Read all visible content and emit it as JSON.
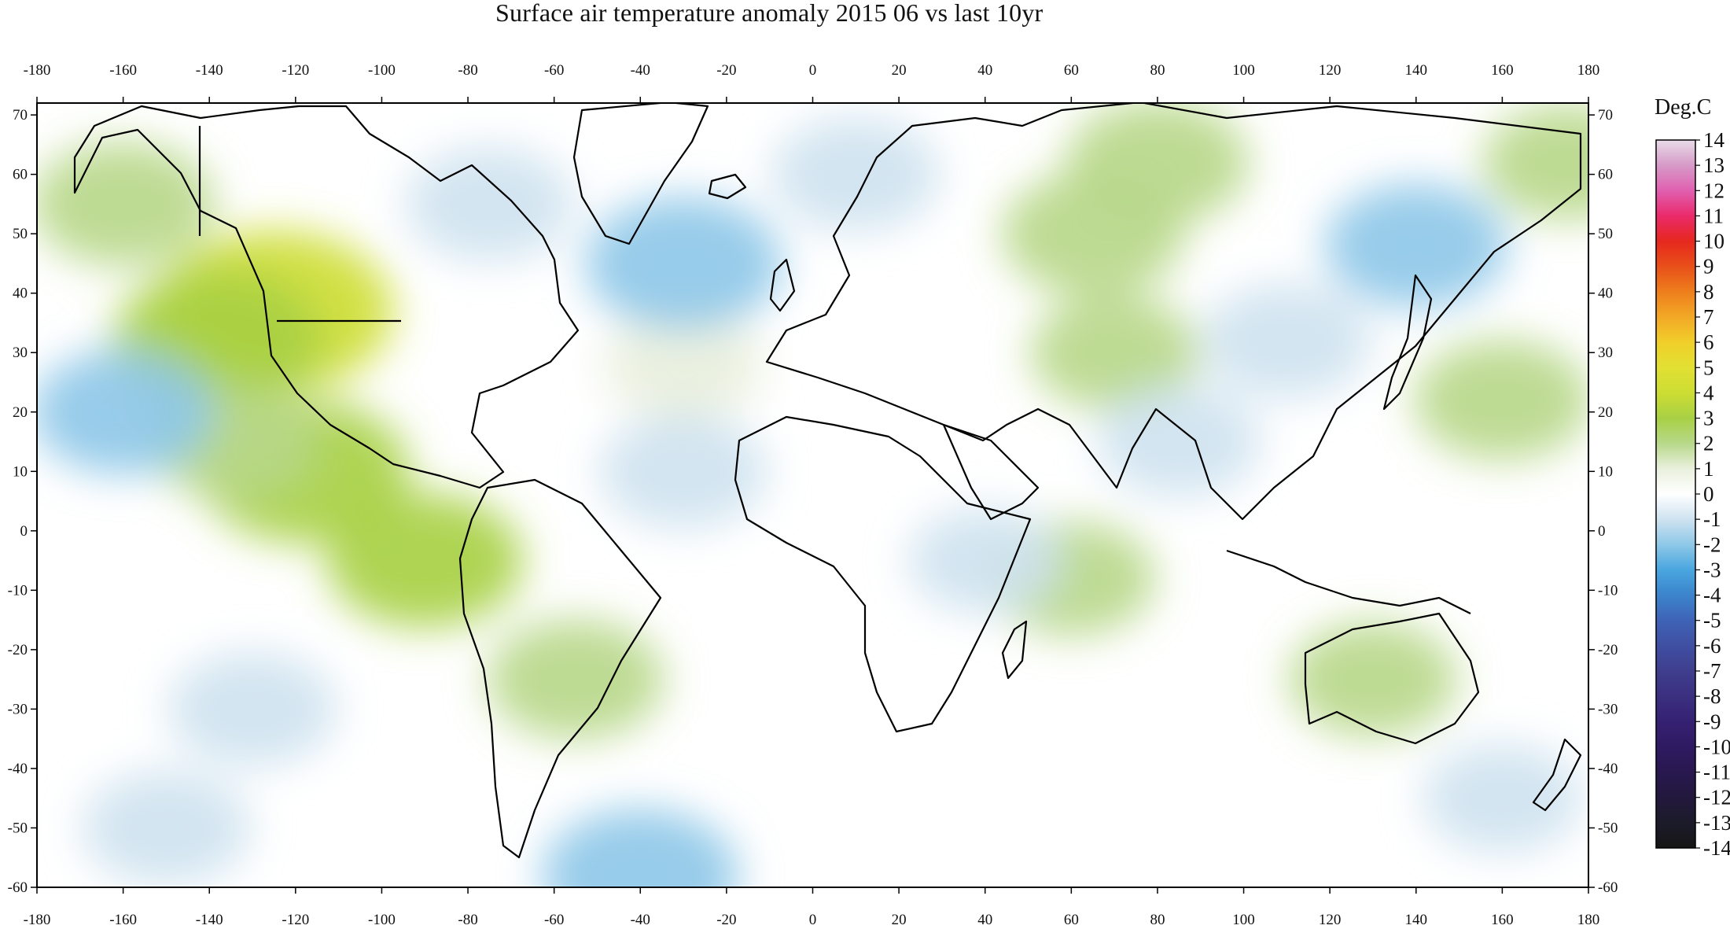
{
  "title": "Surface air temperature anomaly 2015 06 vs last 10yr",
  "legend": {
    "title": "Deg.C",
    "levels": [
      14,
      13,
      12,
      11,
      10,
      9,
      8,
      7,
      6,
      5,
      4,
      3,
      2,
      1,
      0,
      -1,
      -2,
      -3,
      -4,
      -5,
      -6,
      -7,
      -8,
      -9,
      -10,
      -11,
      -12,
      -13,
      -14
    ],
    "colors": [
      "#e8dbe8",
      "#d69ac8",
      "#e060b0",
      "#ea2a6a",
      "#e6281e",
      "#e8501a",
      "#ee7e1c",
      "#f2a826",
      "#f1cf2a",
      "#e2e033",
      "#cddd33",
      "#a8d044",
      "#b8d88a",
      "#e9f0dd",
      "#ffffff",
      "#cfe3f0",
      "#8ec8e8",
      "#4aa6df",
      "#3b84cc",
      "#3f63b6",
      "#3f4fa2",
      "#3f3e8d",
      "#3b2f80",
      "#352172",
      "#2e1a61",
      "#28184f",
      "#23183d",
      "#1c1b2a",
      "#151515"
    ]
  },
  "axes": {
    "lon_ticks": [
      -180,
      -160,
      -140,
      -120,
      -100,
      -80,
      -60,
      -40,
      -20,
      0,
      20,
      40,
      60,
      80,
      100,
      120,
      140,
      160,
      180
    ],
    "lat_ticks": [
      70,
      60,
      50,
      40,
      30,
      20,
      10,
      0,
      -10,
      -20,
      -30,
      -40,
      -50,
      -60
    ],
    "lon_range": [
      -180,
      180
    ],
    "lat_range": [
      -60,
      72
    ]
  },
  "chart_data": {
    "type": "heatmap",
    "title": "Surface air temperature anomaly 2015 06 vs last 10yr",
    "colorbar_label": "Deg.C",
    "value_range": [
      -14,
      14
    ],
    "xlim": [
      -180,
      180
    ],
    "ylim": [
      -60,
      72
    ],
    "anomaly_centers": [
      {
        "lon": -125,
        "lat": 37,
        "value": 4
      },
      {
        "lon": -138,
        "lat": 32,
        "value": 3
      },
      {
        "lon": -118,
        "lat": 10,
        "value": 3
      },
      {
        "lon": -160,
        "lat": 55,
        "value": 2
      },
      {
        "lon": -135,
        "lat": 15,
        "value": 1.5
      },
      {
        "lon": -90,
        "lat": -5,
        "value": 2.5
      },
      {
        "lon": -55,
        "lat": -25,
        "value": 1.8
      },
      {
        "lon": -30,
        "lat": 28,
        "value": 1.2
      },
      {
        "lon": 65,
        "lat": 50,
        "value": 2
      },
      {
        "lon": 80,
        "lat": 62,
        "value": 2
      },
      {
        "lon": 70,
        "lat": 30,
        "value": 1.5
      },
      {
        "lon": 130,
        "lat": -25,
        "value": 1.5
      },
      {
        "lon": 160,
        "lat": 22,
        "value": 1.8
      },
      {
        "lon": 60,
        "lat": -8,
        "value": 1.5
      },
      {
        "lon": -30,
        "lat": 45,
        "value": -2.5
      },
      {
        "lon": -75,
        "lat": 55,
        "value": -1.5
      },
      {
        "lon": 10,
        "lat": 60,
        "value": -1.5
      },
      {
        "lon": 140,
        "lat": 48,
        "value": -2
      },
      {
        "lon": 110,
        "lat": 32,
        "value": -1.5
      },
      {
        "lon": 85,
        "lat": 15,
        "value": -1.3
      },
      {
        "lon": -160,
        "lat": 20,
        "value": -2
      },
      {
        "lon": -30,
        "lat": 10,
        "value": -1.5
      },
      {
        "lon": -130,
        "lat": -30,
        "value": -1.5
      },
      {
        "lon": -150,
        "lat": -50,
        "value": -1.5
      },
      {
        "lon": -40,
        "lat": -58,
        "value": -2.5
      },
      {
        "lon": 40,
        "lat": -5,
        "value": -1
      },
      {
        "lon": 160,
        "lat": -45,
        "value": -1.2
      },
      {
        "lon": 175,
        "lat": 62,
        "value": 1.5
      }
    ]
  }
}
